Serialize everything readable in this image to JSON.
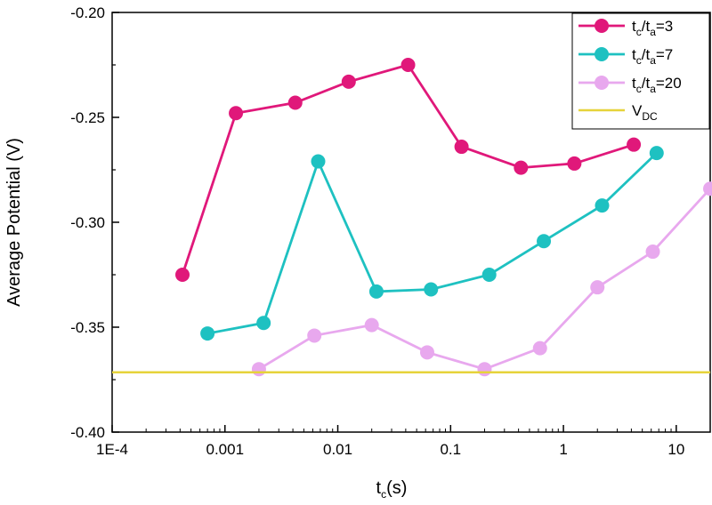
{
  "chart_data": {
    "type": "line",
    "xlabel": {
      "main": "t",
      "sub": "c",
      "rest": "(s)"
    },
    "ylabel": "Average Potential (V)",
    "x_scale": "log",
    "xlim": [
      0.0001,
      20
    ],
    "ylim": [
      -0.4,
      -0.2
    ],
    "x_tick_values": [
      0.0001,
      0.001,
      0.01,
      0.1,
      1,
      10
    ],
    "x_tick_labels": [
      "1E-4",
      "0.001",
      "0.01",
      "0.1",
      "1",
      "10"
    ],
    "y_tick_values": [
      -0.4,
      -0.35,
      -0.3,
      -0.25,
      -0.2
    ],
    "y_tick_labels": [
      "-0.40",
      "-0.35",
      "-0.30",
      "-0.25",
      "-0.20"
    ],
    "legend_position": "top-right",
    "series": [
      {
        "name": "tc/ta=3",
        "label_parts": [
          "t",
          "c",
          "/t",
          "a",
          "=3"
        ],
        "color": "#e0187a",
        "x": [
          0.00042,
          0.00125,
          0.0042,
          0.0125,
          0.042,
          0.125,
          0.42,
          1.25,
          4.2
        ],
        "y": [
          -0.325,
          -0.248,
          -0.243,
          -0.233,
          -0.225,
          -0.264,
          -0.274,
          -0.272,
          -0.263
        ]
      },
      {
        "name": "tc/ta=7",
        "label_parts": [
          "t",
          "c",
          "/t",
          "a",
          "=7"
        ],
        "color": "#1ec1c1",
        "x": [
          0.0007,
          0.0022,
          0.0067,
          0.022,
          0.067,
          0.22,
          0.67,
          2.2,
          6.7
        ],
        "y": [
          -0.353,
          -0.348,
          -0.271,
          -0.333,
          -0.332,
          -0.325,
          -0.309,
          -0.292,
          -0.267
        ]
      },
      {
        "name": "tc/ta=20",
        "label_parts": [
          "t",
          "c",
          "/t",
          "a",
          "=20"
        ],
        "color": "#e8a8ee",
        "x": [
          0.002,
          0.0062,
          0.02,
          0.062,
          0.2,
          0.62,
          2.0,
          6.2,
          20
        ],
        "y": [
          -0.37,
          -0.354,
          -0.349,
          -0.362,
          -0.37,
          -0.36,
          -0.331,
          -0.314,
          -0.284
        ]
      },
      {
        "name": "VDC",
        "label_parts": [
          "V",
          "DC",
          "",
          "",
          ""
        ],
        "color": "#e6d33a",
        "hline": -0.3715
      }
    ]
  }
}
